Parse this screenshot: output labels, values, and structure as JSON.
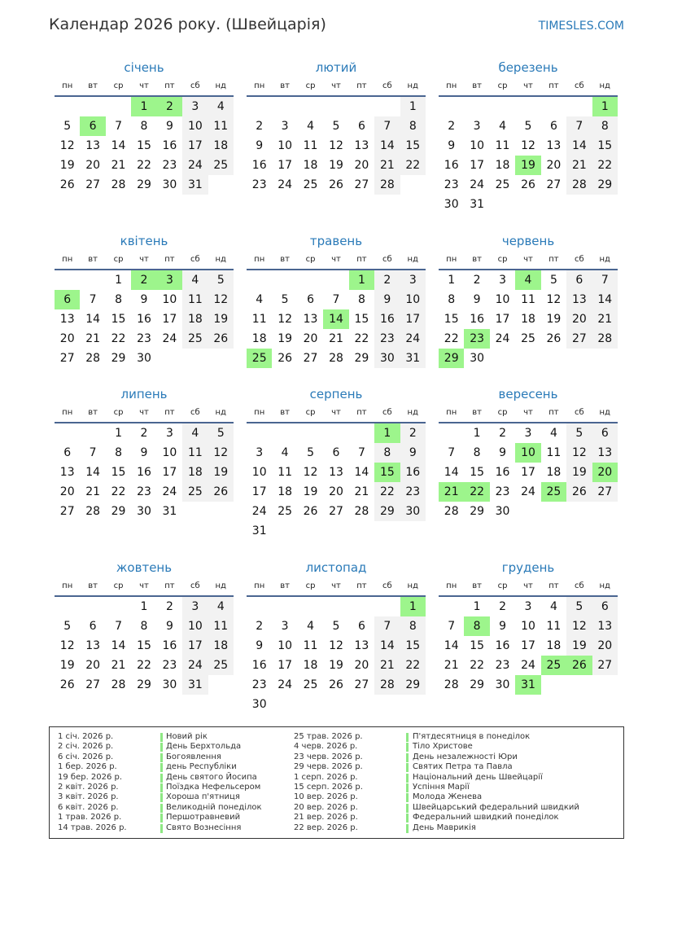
{
  "title": "Календар 2026 року. (Швейцарія)",
  "brand": "TIMESLES.COM",
  "colors": {
    "accent": "#2a7ab8",
    "holiday": "#9df58c",
    "weekend": "#f2f2f2",
    "rule": "#4a6591"
  },
  "weekdays": [
    "пн",
    "вт",
    "ср",
    "чт",
    "пт",
    "сб",
    "нд"
  ],
  "months": [
    {
      "name": "січень",
      "days": 31,
      "first_weekday": 3,
      "holidays": [
        1,
        2,
        6
      ]
    },
    {
      "name": "лютий",
      "days": 28,
      "first_weekday": 6,
      "holidays": []
    },
    {
      "name": "березень",
      "days": 31,
      "first_weekday": 6,
      "holidays": [
        1,
        19
      ]
    },
    {
      "name": "квітень",
      "days": 30,
      "first_weekday": 2,
      "holidays": [
        2,
        3,
        6
      ]
    },
    {
      "name": "травень",
      "days": 31,
      "first_weekday": 4,
      "holidays": [
        1,
        14,
        25
      ]
    },
    {
      "name": "червень",
      "days": 30,
      "first_weekday": 0,
      "holidays": [
        4,
        23,
        29
      ]
    },
    {
      "name": "липень",
      "days": 31,
      "first_weekday": 2,
      "holidays": []
    },
    {
      "name": "серпень",
      "days": 31,
      "first_weekday": 5,
      "holidays": [
        1,
        15
      ]
    },
    {
      "name": "вересень",
      "days": 30,
      "first_weekday": 1,
      "holidays": [
        10,
        20,
        21,
        22,
        25
      ]
    },
    {
      "name": "жовтень",
      "days": 31,
      "first_weekday": 3,
      "holidays": []
    },
    {
      "name": "листопад",
      "days": 30,
      "first_weekday": 6,
      "holidays": [
        1
      ]
    },
    {
      "name": "грудень",
      "days": 31,
      "first_weekday": 1,
      "holidays": [
        8,
        25,
        26,
        31
      ]
    }
  ],
  "legend": [
    {
      "date": "1 січ. 2026 р.",
      "name": "Новий рік"
    },
    {
      "date": "2 січ. 2026 р.",
      "name": "День Берхтольда"
    },
    {
      "date": "6 січ. 2026 р.",
      "name": "Богоявлення"
    },
    {
      "date": "1 бер. 2026 р.",
      "name": "день Республіки"
    },
    {
      "date": "19 бер. 2026 р.",
      "name": "День святого Йосипа"
    },
    {
      "date": "2 квіт. 2026 р.",
      "name": "Поїздка Нефельсером"
    },
    {
      "date": "3 квіт. 2026 р.",
      "name": "Хороша п'ятниця"
    },
    {
      "date": "6 квіт. 2026 р.",
      "name": "Великодній понеділок"
    },
    {
      "date": "1 трав. 2026 р.",
      "name": "Першотравневий"
    },
    {
      "date": "14 трав. 2026 р.",
      "name": "Свято Вознесіння"
    },
    {
      "date": "25 трав. 2026 р.",
      "name": "П'ятдесятниця в понеділок"
    },
    {
      "date": "4 черв. 2026 р.",
      "name": "Тіло Христове"
    },
    {
      "date": "23 черв. 2026 р.",
      "name": "День незалежності Юри"
    },
    {
      "date": "29 черв. 2026 р.",
      "name": "Святих Петра та Павла"
    },
    {
      "date": "1 серп. 2026 р.",
      "name": "Національний день Швейцарії"
    },
    {
      "date": "15 серп. 2026 р.",
      "name": "Успіння Марії"
    },
    {
      "date": "10 вер. 2026 р.",
      "name": "Молода Женева"
    },
    {
      "date": "20 вер. 2026 р.",
      "name": "Швейцарський федеральний швидкий"
    },
    {
      "date": "21 вер. 2026 р.",
      "name": "Федеральний швидкий понеділок"
    },
    {
      "date": "22 вер. 2026 р.",
      "name": "День Маврикія"
    }
  ]
}
